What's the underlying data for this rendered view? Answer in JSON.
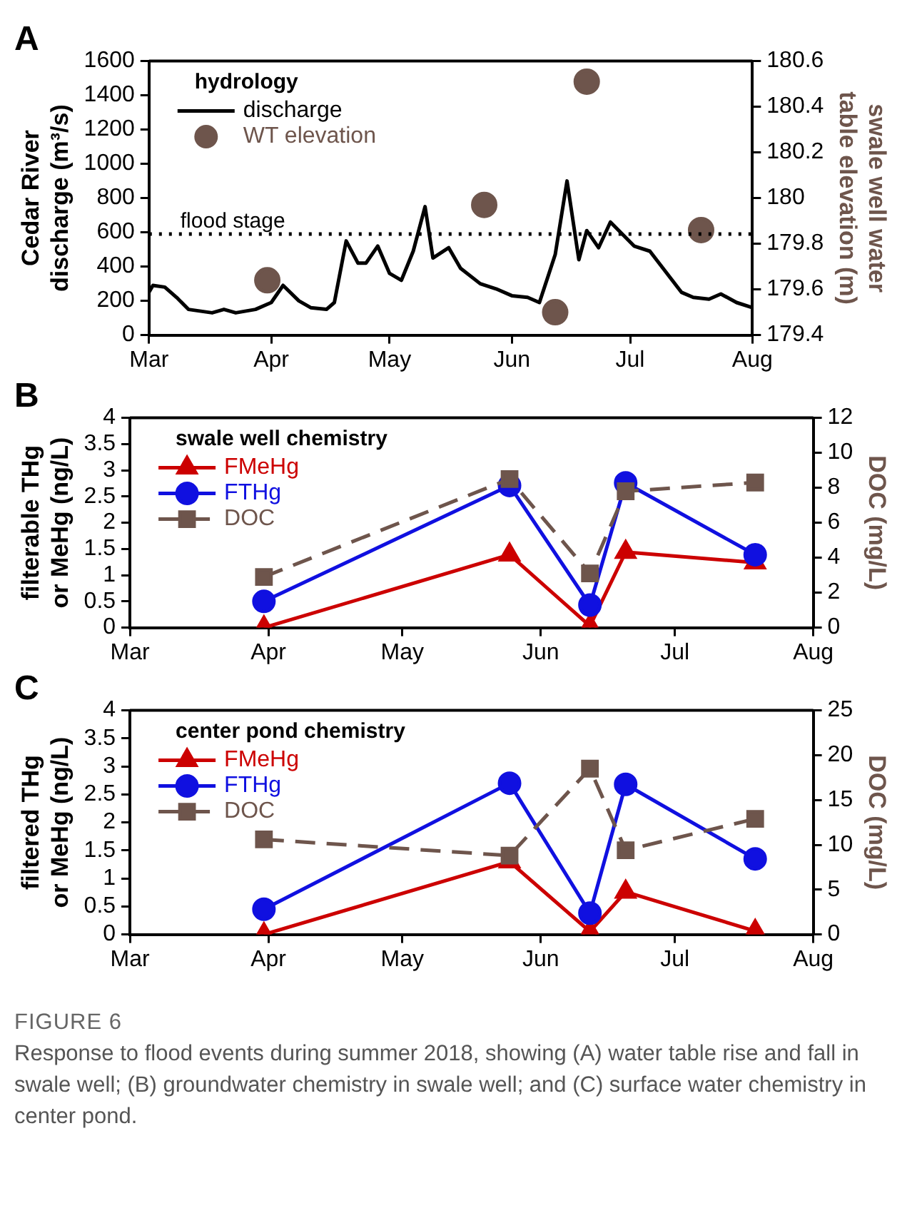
{
  "chart_data": [
    {
      "type": "line",
      "title": "A",
      "ylabel": "Cedar River discharge (m³/s)",
      "y2label": "swale well water table elevation (m)",
      "legend_title": "hydrology",
      "legend": "top left",
      "grid": false,
      "xlim": [
        "--03-01",
        "--08-01"
      ],
      "xticks": [
        {
          "value": "--03-01",
          "label": "Mar"
        },
        {
          "value": "--04-01",
          "label": "Apr"
        },
        {
          "value": "--05-01",
          "label": "May"
        },
        {
          "value": "--06-01",
          "label": "Jun"
        },
        {
          "value": "--07-01",
          "label": "Jul"
        },
        {
          "value": "--08-01",
          "label": "Aug"
        }
      ],
      "ylim": [
        0,
        1600
      ],
      "yticks": [
        0,
        200,
        400,
        600,
        800,
        1000,
        1200,
        1400,
        1600
      ],
      "y2lim": [
        179.4,
        180.6
      ],
      "y2ticks": [
        179.4,
        179.6,
        179.8,
        180,
        180.2,
        180.4,
        180.6
      ],
      "ref_lines": [
        {
          "axis": "y",
          "value": 590,
          "label": "flood stage",
          "line_style": "dotted",
          "color": "#000000"
        }
      ],
      "series": [
        {
          "name": "discharge",
          "type": "line",
          "marker": "none",
          "color": "#000000",
          "x": [
            "--03-01",
            "--03-02",
            "--03-05",
            "--03-08",
            "--03-11",
            "--03-17",
            "--03-20",
            "--03-23",
            "--03-28",
            "--04-01",
            "--04-04",
            "--04-08",
            "--04-11",
            "--04-15",
            "--04-17",
            "--04-20",
            "--04-23",
            "--04-25",
            "--04-28",
            "--05-01",
            "--05-04",
            "--05-07",
            "--05-10",
            "--05-12",
            "--05-16",
            "--05-19",
            "--05-24",
            "--05-28",
            "--06-01",
            "--06-05",
            "--06-08",
            "--06-12",
            "--06-15",
            "--06-18",
            "--06-20",
            "--06-23",
            "--06-26",
            "--07-02",
            "--07-06",
            "--07-14",
            "--07-17",
            "--07-21",
            "--07-24",
            "--07-28",
            "--08-01"
          ],
          "values": [
            250,
            290,
            280,
            220,
            150,
            130,
            150,
            130,
            150,
            190,
            290,
            200,
            160,
            150,
            190,
            550,
            420,
            420,
            520,
            360,
            320,
            490,
            750,
            450,
            510,
            390,
            300,
            270,
            230,
            220,
            190,
            470,
            900,
            440,
            610,
            510,
            660,
            520,
            490,
            250,
            220,
            210,
            240,
            190,
            160
          ]
        },
        {
          "name": "WT elevation",
          "type": "scatter",
          "marker": "circle",
          "axis": "y2",
          "color": "#6e554c",
          "x": [
            "--03-31",
            "--05-25",
            "--06-12",
            "--06-20",
            "--07-19"
          ],
          "values": [
            179.64,
            179.97,
            179.5,
            180.51,
            179.86
          ]
        }
      ]
    },
    {
      "type": "line",
      "title": "B",
      "ylabel": "filterable THg or MeHg (ng/L)",
      "y2label": "DOC (mg/L)",
      "legend_title": "swale well chemistry",
      "legend": "top left",
      "grid": false,
      "xlim": [
        "--03-01",
        "--08-01"
      ],
      "xticks": [
        {
          "value": "--03-01",
          "label": "Mar"
        },
        {
          "value": "--04-01",
          "label": "Apr"
        },
        {
          "value": "--05-01",
          "label": "May"
        },
        {
          "value": "--06-01",
          "label": "Jun"
        },
        {
          "value": "--07-01",
          "label": "Jul"
        },
        {
          "value": "--08-01",
          "label": "Aug"
        }
      ],
      "ylim": [
        0,
        4
      ],
      "yticks": [
        0,
        0.5,
        1,
        1.5,
        2,
        2.5,
        3,
        3.5,
        4
      ],
      "y2lim": [
        0,
        12
      ],
      "y2ticks": [
        0,
        2,
        4,
        6,
        8,
        10,
        12
      ],
      "x": [
        "--03-31",
        "--05-25",
        "--06-12",
        "--06-20",
        "--07-19"
      ],
      "series": [
        {
          "name": "FMeHg",
          "marker": "triangle",
          "color": "#cc0000",
          "values": [
            0,
            1.39,
            0.03,
            1.44,
            1.24
          ]
        },
        {
          "name": "FTHg",
          "marker": "circle",
          "color": "#1010e0",
          "values": [
            0.5,
            2.71,
            0.43,
            2.76,
            1.39
          ]
        },
        {
          "name": "DOC",
          "marker": "square",
          "line_style": "dashed",
          "axis": "y2",
          "color": "#6e554c",
          "values": [
            2.9,
            8.5,
            3.1,
            7.8,
            8.3
          ]
        }
      ]
    },
    {
      "type": "line",
      "title": "C",
      "ylabel": "filtered THg or MeHg (ng/L)",
      "y2label": "DOC (mg/L)",
      "legend_title": "center pond chemistry",
      "legend": "top left",
      "grid": false,
      "xlim": [
        "--03-01",
        "--08-01"
      ],
      "xticks": [
        {
          "value": "--03-01",
          "label": "Mar"
        },
        {
          "value": "--04-01",
          "label": "Apr"
        },
        {
          "value": "--05-01",
          "label": "May"
        },
        {
          "value": "--06-01",
          "label": "Jun"
        },
        {
          "value": "--07-01",
          "label": "Jul"
        },
        {
          "value": "--08-01",
          "label": "Aug"
        }
      ],
      "ylim": [
        0,
        4
      ],
      "yticks": [
        0,
        0.5,
        1,
        1.5,
        2,
        2.5,
        3,
        3.5,
        4
      ],
      "y2lim": [
        0,
        25
      ],
      "y2ticks": [
        0,
        5,
        10,
        15,
        20,
        25
      ],
      "x": [
        "--03-31",
        "--05-25",
        "--06-12",
        "--06-20",
        "--07-19"
      ],
      "series": [
        {
          "name": "FMeHg",
          "marker": "triangle",
          "color": "#cc0000",
          "values": [
            0,
            1.3,
            0.05,
            0.76,
            0.06
          ]
        },
        {
          "name": "FTHg",
          "marker": "circle",
          "color": "#1010e0",
          "values": [
            0.45,
            2.7,
            0.38,
            2.68,
            1.35
          ]
        },
        {
          "name": "DOC",
          "marker": "square",
          "line_style": "dashed",
          "axis": "y2",
          "color": "#6e554c",
          "values": [
            10.6,
            8.8,
            18.5,
            9.4,
            12.9
          ]
        }
      ],
      "annotations": [
        "FIGURE 6",
        "Response to flood events during summer 2018, showing (A) water table rise and fall in swale well; (B) groundwater chemistry in swale well; and (C) surface water chemistry in center pond."
      ]
    }
  ]
}
